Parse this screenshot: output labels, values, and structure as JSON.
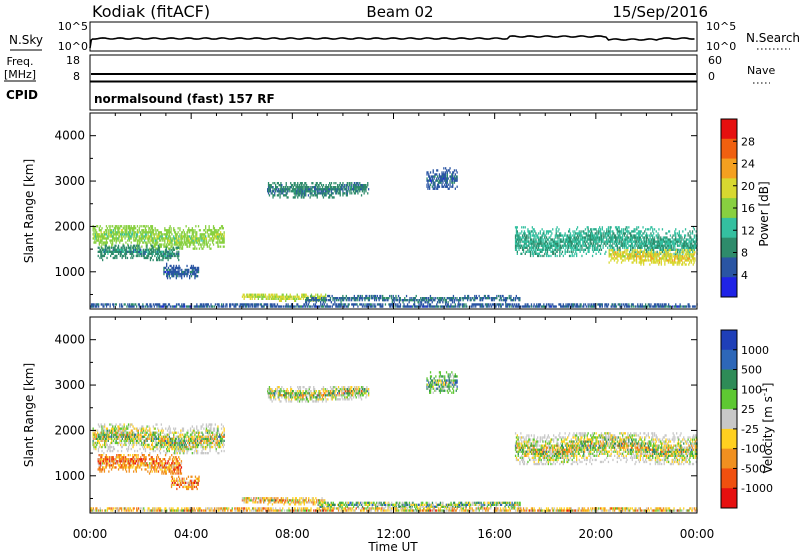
{
  "header": {
    "station": "Kodiak (fitACF)",
    "beam": "Beam 02",
    "date": "15/Sep/2016"
  },
  "time_axis": {
    "ticks": [
      "00:00",
      "04:00",
      "08:00",
      "12:00",
      "16:00",
      "20:00",
      "00:00"
    ],
    "label": "Time UT",
    "range_hours": [
      0,
      24
    ]
  },
  "summary": {
    "nsky": {
      "label": "N.Sky",
      "tick_top": "10^5",
      "tick_bottom": "10^0"
    },
    "nsearch": {
      "label": "N.Search",
      "tick_top": "10^5",
      "tick_bottom": "10^0"
    },
    "freq": {
      "label_line1": "Freq.",
      "label_line2": "[MHz]",
      "tick_top": "18",
      "tick_bottom": "8"
    },
    "nave": {
      "label": "Nave",
      "tick_top": "60",
      "tick_bottom": "0"
    },
    "cpid": {
      "label": "CPID",
      "value": "normalsound (fast) 157 RF"
    }
  },
  "chart_data": [
    {
      "type": "heatmap",
      "title": "",
      "xlabel": "",
      "ylabel": "Slant Range [km]",
      "xlim": [
        0,
        24
      ],
      "ylim": [
        180,
        4500
      ],
      "yticks": [
        "1000",
        "2000",
        "3000",
        "4000"
      ],
      "colorbar": {
        "label": "Power [dB]",
        "ticks": [
          "4",
          "8",
          "12",
          "16",
          "20",
          "24",
          "28"
        ],
        "range": [
          0,
          32
        ],
        "colors": [
          "#1f23e6",
          "#2a55a3",
          "#2e8b6b",
          "#34c0a0",
          "#88d040",
          "#d8d830",
          "#f4a020",
          "#f06010",
          "#e61010"
        ]
      },
      "features": [
        {
          "t0": 0.1,
          "t1": 5.3,
          "r": 1750,
          "w": 260,
          "v": 16
        },
        {
          "t0": 0.3,
          "t1": 3.5,
          "r": 1400,
          "w": 160,
          "v": 9
        },
        {
          "t0": 2.9,
          "t1": 4.3,
          "r": 1000,
          "w": 160,
          "v": 6
        },
        {
          "t0": 6.0,
          "t1": 9.3,
          "r": 430,
          "w": 90,
          "v": 18
        },
        {
          "t0": 8.5,
          "t1": 17.0,
          "r": 380,
          "w": 70,
          "v": 7
        },
        {
          "t0": 7.0,
          "t1": 11.0,
          "r": 2800,
          "w": 180,
          "v": 8
        },
        {
          "t0": 13.3,
          "t1": 14.5,
          "r": 3050,
          "w": 240,
          "v": 6
        },
        {
          "t0": 16.8,
          "t1": 24.0,
          "r": 1650,
          "w": 320,
          "v": 11
        },
        {
          "t0": 20.5,
          "t1": 23.9,
          "r": 1320,
          "w": 180,
          "v": 20
        },
        {
          "t0": 0.0,
          "t1": 24.0,
          "r": 230,
          "w": 60,
          "v": 6
        }
      ]
    },
    {
      "type": "heatmap",
      "title": "",
      "xlabel": "Time UT",
      "ylabel": "Slant Range [km]",
      "xlim": [
        0,
        24
      ],
      "ylim": [
        180,
        4500
      ],
      "yticks": [
        "1000",
        "2000",
        "3000",
        "4000"
      ],
      "colorbar": {
        "label": "Velocity [m s^-1]",
        "ticks": [
          "1000",
          "500",
          "100",
          "25",
          "-25",
          "-100",
          "-500",
          "-1000"
        ],
        "colors": [
          "#1f3fb8",
          "#2d67b8",
          "#2e8b57",
          "#5ec832",
          "#c8c8c8",
          "#ffd020",
          "#f09020",
          "#f05010",
          "#e61010"
        ]
      },
      "features": [
        {
          "t0": 0.1,
          "t1": 5.3,
          "r": 1800,
          "w": 320,
          "v": 4
        },
        {
          "t0": 0.3,
          "t1": 3.6,
          "r": 1250,
          "w": 220,
          "v": 6
        },
        {
          "t0": 3.2,
          "t1": 4.3,
          "r": 850,
          "w": 160,
          "v": 6
        },
        {
          "t0": 6.0,
          "t1": 9.3,
          "r": 440,
          "w": 90,
          "v": 5
        },
        {
          "t0": 9.0,
          "t1": 17.0,
          "r": 340,
          "w": 90,
          "v": 3
        },
        {
          "t0": 7.0,
          "t1": 11.0,
          "r": 2800,
          "w": 180,
          "v": 4
        },
        {
          "t0": 13.3,
          "t1": 14.5,
          "r": 3050,
          "w": 240,
          "v": 3
        },
        {
          "t0": 16.8,
          "t1": 24.0,
          "r": 1600,
          "w": 360,
          "v": 4
        },
        {
          "t0": 0.0,
          "t1": 24.0,
          "r": 230,
          "w": 60,
          "v": 5
        }
      ]
    }
  ]
}
